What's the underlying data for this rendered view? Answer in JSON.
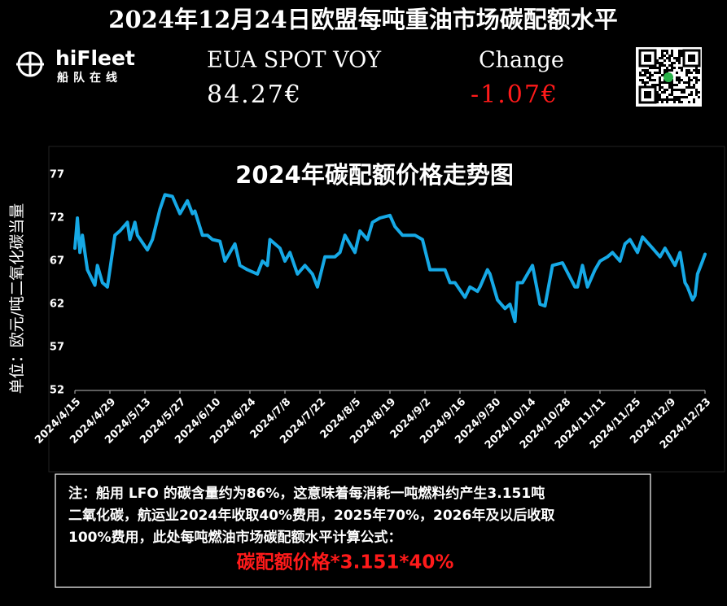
{
  "header": {
    "title": "2024年12月24日欧盟每吨重油市场碳配额水平",
    "logo_name": "hiFleet",
    "logo_sub": "船队在线",
    "price_label": "EUA SPOT VOY",
    "price_value": "84.27€",
    "change_label": "Change",
    "change_value": "-1.07€"
  },
  "chart_data": {
    "type": "line",
    "title": "2024年碳配额价格走势图",
    "y_label": "单位：欧元/吨二氧化碳当量",
    "x": [
      "2024/4/15",
      "2024/4/16",
      "2024/4/17",
      "2024/4/18",
      "2024/4/20",
      "2024/4/23",
      "2024/4/24",
      "2024/4/26",
      "2024/4/28",
      "2024/5/1",
      "2024/5/3",
      "2024/5/6",
      "2024/5/7",
      "2024/5/9",
      "2024/5/10",
      "2024/5/14",
      "2024/5/16",
      "2024/5/19",
      "2024/5/21",
      "2024/5/24",
      "2024/5/27",
      "2024/5/30",
      "2024/6/1",
      "2024/6/2",
      "2024/6/5",
      "2024/6/7",
      "2024/6/9",
      "2024/6/12",
      "2024/6/14",
      "2024/6/18",
      "2024/6/20",
      "2024/6/23",
      "2024/6/27",
      "2024/6/29",
      "2024/7/1",
      "2024/7/2",
      "2024/7/6",
      "2024/7/8",
      "2024/7/10",
      "2024/7/13",
      "2024/7/16",
      "2024/7/19",
      "2024/7/21",
      "2024/7/24",
      "2024/7/28",
      "2024/7/30",
      "2024/8/1",
      "2024/8/4",
      "2024/8/5",
      "2024/8/7",
      "2024/8/10",
      "2024/8/12",
      "2024/8/15",
      "2024/8/19",
      "2024/8/21",
      "2024/8/24",
      "2024/8/29",
      "2024/9/1",
      "2024/9/4",
      "2024/9/10",
      "2024/9/12",
      "2024/9/14",
      "2024/9/18",
      "2024/9/20",
      "2024/9/23",
      "2024/9/24",
      "2024/9/27",
      "2024/9/28",
      "2024/10/1",
      "2024/10/4",
      "2024/10/6",
      "2024/10/8",
      "2024/10/9",
      "2024/10/11",
      "2024/10/13",
      "2024/10/15",
      "2024/10/18",
      "2024/10/20",
      "2024/10/23",
      "2024/10/27",
      "2024/11/1",
      "2024/11/2",
      "2024/11/4",
      "2024/11/6",
      "2024/11/9",
      "2024/11/11",
      "2024/11/14",
      "2024/11/16",
      "2024/11/19",
      "2024/11/21",
      "2024/11/23",
      "2024/11/26",
      "2024/11/28",
      "2024/12/2",
      "2024/12/5",
      "2024/12/7",
      "2024/12/10",
      "2024/12/11",
      "2024/12/13",
      "2024/12/15",
      "2024/12/16",
      "2024/12/18",
      "2024/12/19",
      "2024/12/20",
      "2024/12/22",
      "2024/12/23"
    ],
    "series": [
      {
        "name": "EUA",
        "color": "#16a9e6",
        "values": [
          68.5,
          72,
          68,
          70,
          66,
          64.2,
          66.5,
          64.5,
          64,
          70,
          70.5,
          71.5,
          69.5,
          71.5,
          70,
          68.3,
          69.5,
          73,
          74.7,
          74.5,
          72.5,
          74,
          72.5,
          72.8,
          70,
          70,
          69.5,
          69.3,
          67,
          69,
          66.5,
          66,
          65.5,
          67,
          66.5,
          69.5,
          68.5,
          67,
          68,
          65.5,
          66.5,
          65.5,
          64,
          67.5,
          67.5,
          68,
          70,
          68.5,
          68,
          70.5,
          69.5,
          71.5,
          72,
          72.3,
          71,
          70,
          70,
          69.5,
          66,
          66,
          64.5,
          64.5,
          62.8,
          64,
          63.5,
          64,
          66,
          65.5,
          62.5,
          61.5,
          62,
          60,
          64.5,
          64.5,
          65.5,
          66.5,
          62,
          61.8,
          66.5,
          66.8,
          64,
          64,
          66.5,
          64,
          66,
          67,
          67.5,
          68,
          67,
          69,
          69.5,
          68,
          69.8,
          68.5,
          67.5,
          68.5,
          67,
          66.5,
          68,
          64.5,
          64,
          62.5,
          63,
          65.5,
          67,
          67.8
        ]
      }
    ],
    "xlim": [
      "2024/4/15",
      "2024/12/23"
    ],
    "xticks": [
      "2024/4/15",
      "2024/4/29",
      "2024/5/13",
      "2024/5/27",
      "2024/6/10",
      "2024/6/24",
      "2024/7/8",
      "2024/7/22",
      "2024/8/5",
      "2024/8/19",
      "2024/9/2",
      "2024/9/16",
      "2024/9/30",
      "2024/10/14",
      "2024/10/28",
      "2024/11/11",
      "2024/11/25",
      "2024/12/9",
      "2024/12/23"
    ],
    "ylim": [
      52,
      77
    ],
    "yticks": [
      52,
      57,
      62,
      67,
      72,
      77
    ],
    "grid": false
  },
  "note": {
    "lines": [
      "注：船用 LFO 的碳含量约为86%，这意味着每消耗一吨燃料约产生3.151吨",
      "二氧化碳，航运业2024年收取40%费用，2025年70%，2026年及以后收取",
      "100%费用，此处每吨燃油市场碳配额水平计算公式："
    ],
    "formula": "碳配额价格*3.151*40%"
  }
}
